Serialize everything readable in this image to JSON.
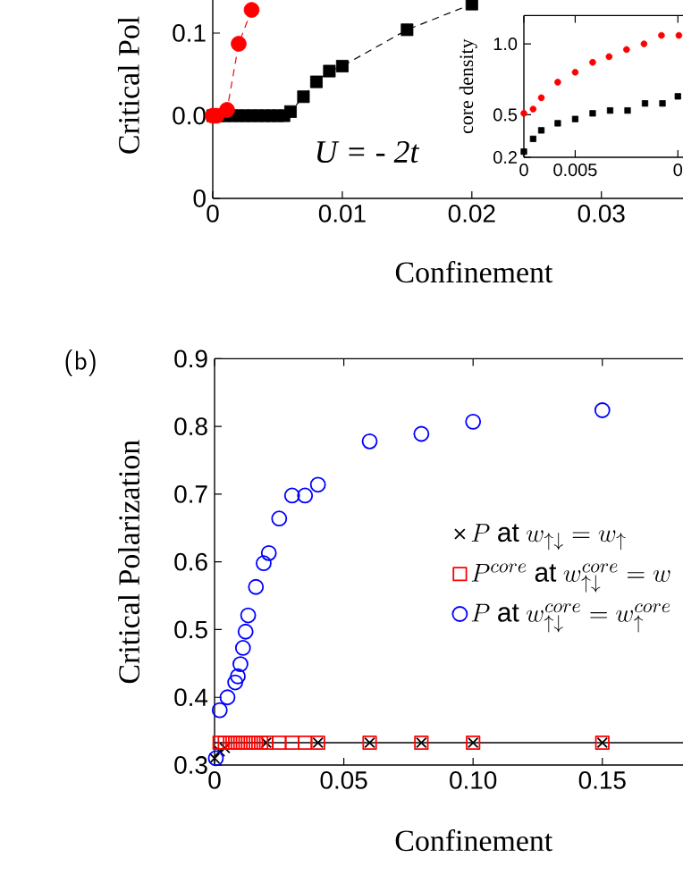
{
  "chart_data": [
    {
      "type": "line",
      "xlabel": "Confinement",
      "ylabel": "Critical Pol",
      "annotations": [
        "U = - 2t"
      ],
      "xlim": [
        0,
        0.0363
      ],
      "ylim": [
        -0.1,
        0.14
      ],
      "xticks": [
        0,
        0.01,
        0.02,
        0.03
      ],
      "yticks": [
        {
          "value": -0.1,
          "label": "0"
        },
        {
          "value": 0,
          "label": "0.0"
        },
        0.1
      ],
      "line_style": "dashed",
      "series": [
        {
          "color": "#000000",
          "marker": "square",
          "x": [
            0,
            0.0005,
            0.001,
            0.0015,
            0.002,
            0.0025,
            0.003,
            0.0035,
            0.004,
            0.0045,
            0.005,
            0.0055,
            0.006,
            0.007,
            0.008,
            0.009,
            0.01,
            0.015,
            0.02
          ],
          "values": [
            0,
            0,
            0,
            0,
            0,
            0,
            0,
            0,
            0,
            0,
            0,
            0,
            0.005,
            0.023,
            0.041,
            0.054,
            0.06,
            0.104,
            0.135
          ]
        },
        {
          "color": "#ff0000",
          "marker": "circle",
          "x": [
            0,
            0.0003,
            0.0011,
            0.002,
            0.003
          ],
          "values": [
            0,
            0,
            0.007,
            0.087,
            0.128
          ]
        }
      ]
    },
    {
      "type": "scatter",
      "ylabel": "core density",
      "xlim": [
        0,
        0.0155
      ],
      "ylim": [
        0.2,
        1.2
      ],
      "xticks": [
        0,
        0.005,
        {
          "value": 0.015,
          "label": "0"
        }
      ],
      "yticks": [
        0.2,
        0.5,
        {
          "value": 1,
          "label": "1.0"
        }
      ],
      "series": [
        {
          "color": "#ff0000",
          "marker": "circle",
          "x": [
            0,
            0.0009,
            0.0017,
            0.0033,
            0.005,
            0.0067,
            0.0083,
            0.01,
            0.0117,
            0.0134,
            0.0151
          ],
          "values": [
            0.51,
            0.54,
            0.62,
            0.73,
            0.8,
            0.87,
            0.91,
            0.96,
            1.0,
            1.06,
            1.06
          ]
        },
        {
          "color": "#000000",
          "marker": "square",
          "x": [
            0,
            0.0009,
            0.0017,
            0.0033,
            0.005,
            0.0067,
            0.0084,
            0.0101,
            0.0118,
            0.0135,
            0.015
          ],
          "values": [
            0.24,
            0.33,
            0.39,
            0.44,
            0.47,
            0.51,
            0.53,
            0.53,
            0.58,
            0.58,
            0.63
          ]
        }
      ]
    },
    {
      "type": "scatter",
      "xlabel": "Confinement",
      "ylabel": "Critical Polarization",
      "annotations": [
        "(b)"
      ],
      "xlim": [
        0,
        0.1812
      ],
      "ylim": [
        0.3,
        0.9
      ],
      "xticks": [
        0,
        0.05,
        {
          "value": 0.1,
          "label": "0.10"
        },
        0.15
      ],
      "yticks": [
        0.3,
        0.4,
        0.5,
        0.6,
        0.7,
        0.8,
        0.9
      ],
      "legend": "right",
      "ref_lines": [
        {
          "axis": "y",
          "value": 0.333,
          "color": "#000000"
        }
      ],
      "series": [
        {
          "name": "P\\ \\mathrm{at}\\ w_{\\uparrow\\downarrow}=w_{\\uparrow}",
          "color": "#000000",
          "marker": "cross",
          "x": [
            0,
            0.002,
            0.004,
            0.006,
            0.008,
            0.01,
            0.012,
            0.015,
            0.02,
            0.04,
            0.06,
            0.08,
            0.1,
            0.15
          ],
          "values": [
            0.31,
            0.32,
            0.325,
            null,
            null,
            null,
            null,
            null,
            0.333,
            0.333,
            0.333,
            0.333,
            0.333,
            0.333
          ]
        },
        {
          "name": "P^{core}\\ \\mathrm{at}\\ w^{core}_{\\uparrow\\downarrow}=w",
          "color": "#ff0000",
          "marker": "square",
          "x": [
            0.002,
            0.004,
            0.006,
            0.008,
            0.01,
            0.012,
            0.014,
            0.016,
            0.018,
            0.02,
            0.025,
            0.03,
            0.035,
            0.04,
            0.06,
            0.08,
            0.1,
            0.15
          ],
          "values": [
            0.333,
            0.333,
            0.333,
            0.333,
            0.333,
            0.333,
            0.333,
            0.333,
            0.333,
            0.333,
            0.333,
            0.333,
            0.333,
            0.333,
            0.333,
            0.333,
            0.333,
            0.333
          ]
        },
        {
          "name": "P\\ \\mathrm{at}\\ w^{core}_{\\uparrow\\downarrow}=w^{core}_{\\uparrow}",
          "color": "#0000ff",
          "marker": "circle",
          "x": [
            0.0005,
            0.002,
            0.005,
            0.008,
            0.009,
            0.01,
            0.011,
            0.012,
            0.013,
            0.016,
            0.019,
            0.021,
            0.025,
            0.03,
            0.035,
            0.04,
            0.06,
            0.08,
            0.1,
            0.15
          ],
          "values": [
            0.31,
            0.381,
            0.4,
            0.422,
            0.431,
            0.449,
            0.473,
            0.497,
            0.521,
            0.563,
            0.598,
            0.613,
            0.664,
            0.698,
            0.698,
            0.714,
            0.778,
            0.789,
            0.807,
            0.824
          ]
        }
      ]
    }
  ]
}
